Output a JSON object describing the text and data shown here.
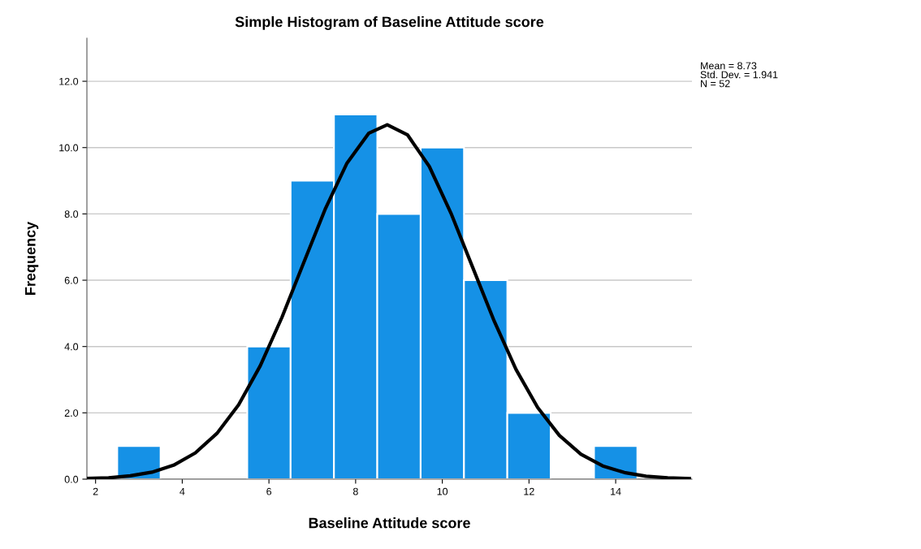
{
  "chart_data": {
    "type": "histogram",
    "title": "Simple Histogram of Baseline Attitude score",
    "xlabel": "Baseline Attitude score",
    "ylabel": "Frequency",
    "bins": [
      2.5,
      3.5,
      4.5,
      5.5,
      6.5,
      7.5,
      8.5,
      9.5,
      10.5,
      11.5,
      12.5,
      13.5,
      14.5
    ],
    "values": [
      1,
      0,
      0,
      4,
      9,
      11,
      8,
      10,
      6,
      2,
      0,
      1
    ],
    "color": "#1591e6",
    "series": [
      {
        "type": "line",
        "color": "#000000",
        "x": [
          1.8,
          2.3,
          2.8,
          3.3,
          3.8,
          4.3,
          4.8,
          5.3,
          5.8,
          6.3,
          6.8,
          7.3,
          7.8,
          8.3,
          8.73,
          9.2,
          9.7,
          10.2,
          10.7,
          11.2,
          11.7,
          12.2,
          12.7,
          13.2,
          13.7,
          14.2,
          14.7,
          15.2,
          15.7
        ],
        "values": [
          0.02,
          0.04,
          0.1,
          0.21,
          0.42,
          0.79,
          1.38,
          2.24,
          3.42,
          4.88,
          6.52,
          8.15,
          9.53,
          10.43,
          10.69,
          10.38,
          9.43,
          8.02,
          6.39,
          4.76,
          3.31,
          2.16,
          1.32,
          0.75,
          0.4,
          0.2,
          0.09,
          0.04,
          0.02
        ]
      }
    ],
    "xlim": [
      1.8,
      15.76
    ],
    "xticks": [
      2,
      4,
      6,
      8,
      10,
      12,
      14
    ],
    "ylim": [
      0,
      13.3
    ],
    "yticks": [
      {
        "value": 0,
        "label": "0.0"
      },
      {
        "value": 2,
        "label": "2.0"
      },
      {
        "value": 4,
        "label": "4.0"
      },
      {
        "value": 6,
        "label": "6.0"
      },
      {
        "value": 8,
        "label": "8.0"
      },
      {
        "value": 10,
        "label": "10.0"
      },
      {
        "value": 12,
        "label": "12.0"
      }
    ],
    "grid": "y",
    "annotations": [
      "Mean = 8.73",
      "Std. Dev. = 1.941",
      "N = 52"
    ]
  }
}
